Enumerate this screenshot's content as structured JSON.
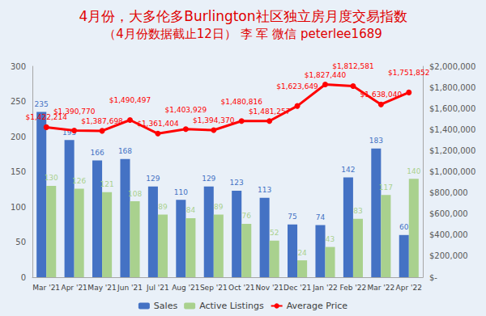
{
  "chart_data": {
    "type": "bar",
    "title": "4月份，大多伦多Burlington社区独立房月度交易指数",
    "subtitle": "（4月份数据截止12日） 李 军 微信 peterlee1689",
    "categories": [
      "Mar '21",
      "Apr '21",
      "May '21",
      "Jun '21",
      "Jul '21",
      "Aug '21",
      "Sep '21",
      "Oct '21",
      "Nov '21",
      "Dec '21",
      "Jan '22",
      "Feb '22",
      "Mar '22",
      "Apr '22"
    ],
    "series": [
      {
        "name": "Sales",
        "type": "bar",
        "color": "#4472c4",
        "values": [
          235,
          195,
          166,
          168,
          129,
          110,
          129,
          123,
          113,
          75,
          74,
          142,
          183,
          60
        ]
      },
      {
        "name": "Active Listings",
        "type": "bar",
        "color": "#a9d18e",
        "values": [
          130,
          126,
          121,
          108,
          89,
          84,
          89,
          76,
          52,
          24,
          43,
          83,
          117,
          140
        ]
      },
      {
        "name": "Average Price",
        "type": "line",
        "color": "#ff0000",
        "axis": "y2",
        "marker": "circle",
        "values": [
          1422214,
          1390770,
          1387698,
          1490497,
          1361404,
          1403929,
          1394370,
          1480816,
          1481257,
          1623649,
          1827440,
          1812581,
          1638040,
          1751852
        ],
        "value_labels": [
          "$1,422,214",
          "$1,390,770",
          "$1,387,698",
          "$1,490,497",
          "$1,361,404",
          "$1,403,929",
          "$1,394,370",
          "$1,480,816",
          "$1,481,257",
          "$1,623,649",
          "$1,827,440",
          "$1,812,581",
          "$1,638,040",
          "$1,751,852"
        ]
      }
    ],
    "ylim": [
      0,
      300
    ],
    "yticks": [
      0,
      50,
      100,
      150,
      200,
      250,
      300
    ],
    "y2lim": [
      0,
      2000000
    ],
    "y2ticks": [
      {
        "value": 0,
        "label": "$-"
      },
      {
        "value": 200000,
        "label": "$200,000"
      },
      {
        "value": 400000,
        "label": "$400,000"
      },
      {
        "value": 600000,
        "label": "$600,000"
      },
      {
        "value": 800000,
        "label": "$800,000"
      },
      {
        "value": 1000000,
        "label": "$1,000,000"
      },
      {
        "value": 1200000,
        "label": "$1,200,000"
      },
      {
        "value": 1400000,
        "label": "$1,400,000"
      },
      {
        "value": 1600000,
        "label": "$1,600,000"
      },
      {
        "value": 1800000,
        "label": "$1,800,000"
      },
      {
        "value": 2000000,
        "label": "$2,000,000"
      }
    ],
    "grid": false,
    "legend": "bottom",
    "data_labels": true
  }
}
